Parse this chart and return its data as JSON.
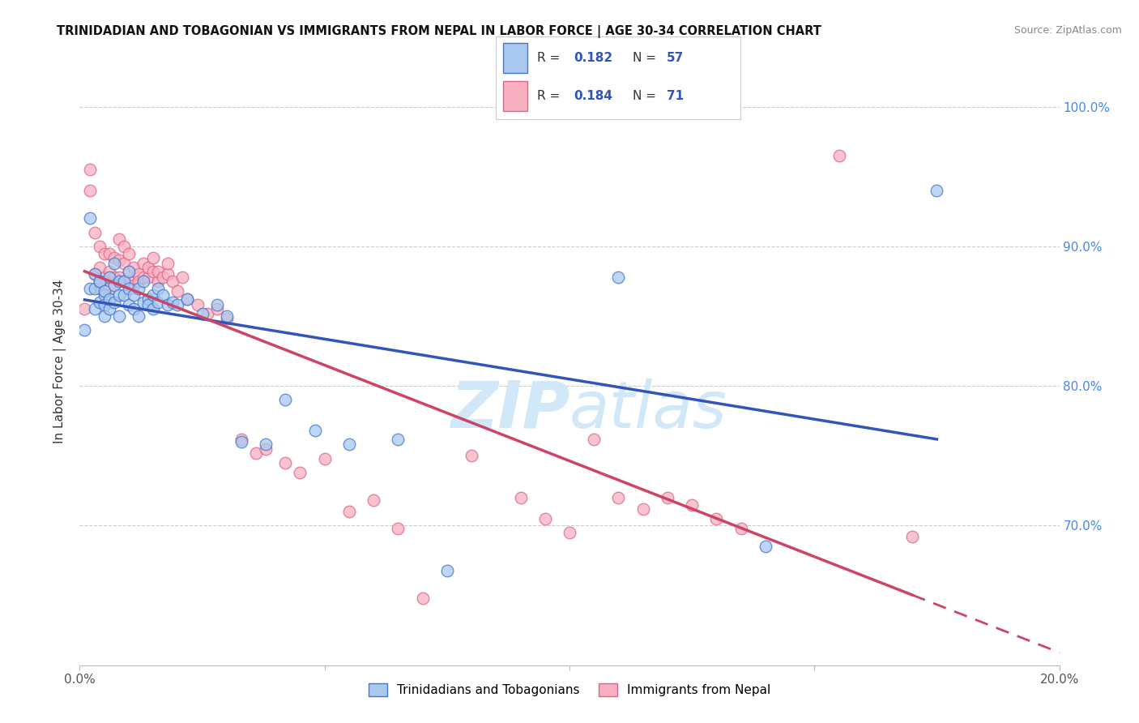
{
  "title": "TRINIDADIAN AND TOBAGONIAN VS IMMIGRANTS FROM NEPAL IN LABOR FORCE | AGE 30-34 CORRELATION CHART",
  "source": "Source: ZipAtlas.com",
  "ylabel": "In Labor Force | Age 30-34",
  "xlim": [
    0.0,
    0.2
  ],
  "ylim": [
    0.6,
    1.035
  ],
  "ytick_values": [
    0.7,
    0.8,
    0.9,
    1.0
  ],
  "ytick_labels": [
    "70.0%",
    "80.0%",
    "90.0%",
    "100.0%"
  ],
  "xtick_positions": [
    0.0,
    0.05,
    0.1,
    0.15,
    0.2
  ],
  "xtick_labels": [
    "0.0%",
    "",
    "",
    "",
    "20.0%"
  ],
  "legend_r_blue": "0.182",
  "legend_n_blue": "57",
  "legend_r_pink": "0.184",
  "legend_n_pink": "71",
  "blue_scatter_color": "#a8c8f0",
  "blue_edge_color": "#4477cc",
  "pink_scatter_color": "#f8b0c0",
  "pink_edge_color": "#dd6688",
  "blue_line_color": "#3355bb",
  "pink_line_color": "#cc4466",
  "legend_label_blue": "Trinidadians and Tobagonians",
  "legend_label_pink": "Immigrants from Nepal",
  "watermark_color": "#d0e8f8",
  "blue_scatter_x": [
    0.001,
    0.002,
    0.002,
    0.003,
    0.003,
    0.003,
    0.004,
    0.004,
    0.004,
    0.005,
    0.005,
    0.005,
    0.005,
    0.006,
    0.006,
    0.006,
    0.007,
    0.007,
    0.007,
    0.008,
    0.008,
    0.008,
    0.009,
    0.009,
    0.01,
    0.01,
    0.01,
    0.011,
    0.011,
    0.012,
    0.012,
    0.013,
    0.013,
    0.014,
    0.014,
    0.015,
    0.015,
    0.016,
    0.016,
    0.017,
    0.018,
    0.019,
    0.02,
    0.022,
    0.025,
    0.028,
    0.03,
    0.033,
    0.038,
    0.042,
    0.048,
    0.055,
    0.065,
    0.075,
    0.11,
    0.14,
    0.175
  ],
  "blue_scatter_y": [
    0.84,
    0.92,
    0.87,
    0.88,
    0.855,
    0.87,
    0.875,
    0.86,
    0.875,
    0.865,
    0.858,
    0.85,
    0.868,
    0.855,
    0.862,
    0.878,
    0.872,
    0.86,
    0.888,
    0.875,
    0.85,
    0.865,
    0.865,
    0.875,
    0.87,
    0.858,
    0.882,
    0.865,
    0.855,
    0.87,
    0.85,
    0.875,
    0.86,
    0.862,
    0.858,
    0.855,
    0.865,
    0.87,
    0.86,
    0.865,
    0.858,
    0.86,
    0.858,
    0.862,
    0.852,
    0.858,
    0.85,
    0.76,
    0.758,
    0.79,
    0.768,
    0.758,
    0.762,
    0.668,
    0.878,
    0.685,
    0.94
  ],
  "pink_scatter_x": [
    0.001,
    0.002,
    0.002,
    0.003,
    0.003,
    0.004,
    0.004,
    0.004,
    0.005,
    0.005,
    0.005,
    0.006,
    0.006,
    0.006,
    0.007,
    0.007,
    0.008,
    0.008,
    0.008,
    0.009,
    0.009,
    0.009,
    0.01,
    0.01,
    0.01,
    0.011,
    0.011,
    0.012,
    0.012,
    0.013,
    0.013,
    0.014,
    0.014,
    0.015,
    0.015,
    0.016,
    0.016,
    0.017,
    0.018,
    0.018,
    0.019,
    0.02,
    0.021,
    0.022,
    0.024,
    0.026,
    0.028,
    0.03,
    0.033,
    0.036,
    0.038,
    0.042,
    0.045,
    0.05,
    0.055,
    0.06,
    0.065,
    0.07,
    0.08,
    0.09,
    0.095,
    0.1,
    0.105,
    0.11,
    0.115,
    0.12,
    0.125,
    0.13,
    0.135,
    0.155,
    0.17
  ],
  "pink_scatter_y": [
    0.855,
    0.94,
    0.955,
    0.88,
    0.91,
    0.87,
    0.885,
    0.9,
    0.868,
    0.878,
    0.895,
    0.87,
    0.882,
    0.895,
    0.878,
    0.892,
    0.905,
    0.878,
    0.89,
    0.875,
    0.888,
    0.9,
    0.882,
    0.875,
    0.895,
    0.872,
    0.885,
    0.88,
    0.875,
    0.878,
    0.888,
    0.878,
    0.885,
    0.882,
    0.892,
    0.875,
    0.882,
    0.878,
    0.88,
    0.888,
    0.875,
    0.868,
    0.878,
    0.862,
    0.858,
    0.852,
    0.855,
    0.848,
    0.762,
    0.752,
    0.755,
    0.745,
    0.738,
    0.748,
    0.71,
    0.718,
    0.698,
    0.648,
    0.75,
    0.72,
    0.705,
    0.695,
    0.762,
    0.72,
    0.712,
    0.72,
    0.715,
    0.705,
    0.698,
    0.965,
    0.692
  ]
}
